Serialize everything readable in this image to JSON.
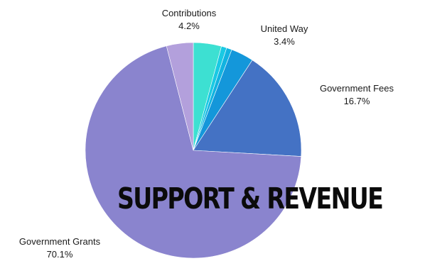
{
  "banner": {
    "text": "SUPPORT & REVENUE"
  },
  "chart_data": {
    "type": "pie",
    "slices": [
      {
        "label": "Contributions",
        "value": 4.2,
        "pct_text": "4.2%",
        "color": "#3de0d2",
        "show_label": true
      },
      {
        "label": "",
        "value": 0.8,
        "color": "#1ac9e3",
        "show_label": false
      },
      {
        "label": "",
        "value": 0.8,
        "color": "#12b3e0",
        "show_label": false
      },
      {
        "label": "United Way",
        "value": 3.4,
        "pct_text": "3.4%",
        "color": "#1497da",
        "show_label": true
      },
      {
        "label": "Government Fees",
        "value": 16.7,
        "pct_text": "16.7%",
        "color": "#4472c4",
        "show_label": true
      },
      {
        "label": "Government Grants",
        "value": 70.1,
        "pct_text": "70.1%",
        "color": "#8a84ce",
        "show_label": true
      },
      {
        "label": "",
        "value": 4.0,
        "color": "#b3a0dc",
        "show_label": false
      }
    ],
    "start": "12 o'clock",
    "direction": "clockwise",
    "title": "",
    "legend": "none"
  },
  "labels": [
    {
      "name": "Contributions",
      "pct": "4.2%"
    },
    {
      "name": "United Way",
      "pct": "3.4%"
    },
    {
      "name": "Government Fees",
      "pct": "16.7%"
    },
    {
      "name": "Government Grants",
      "pct": "70.1%"
    }
  ]
}
